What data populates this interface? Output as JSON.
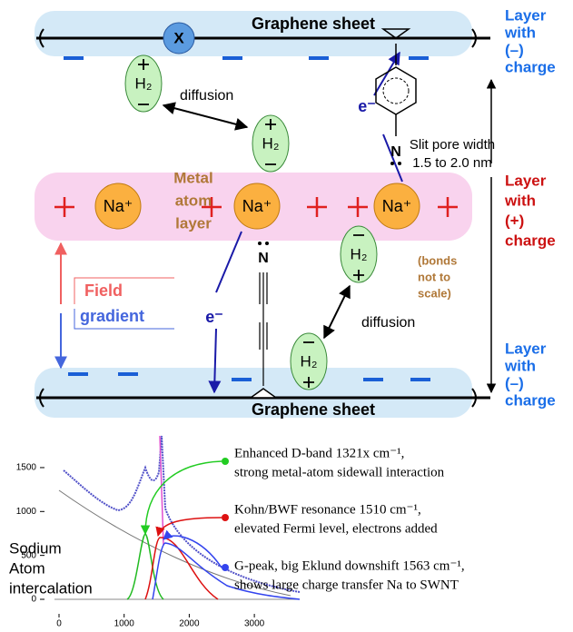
{
  "top_sheet": {
    "label": "Graphene sheet",
    "x_group": "X",
    "side_label": [
      "Layer",
      "with",
      "(–)",
      "charge"
    ]
  },
  "metal_layer": {
    "label": [
      "Metal",
      "atom",
      "layer"
    ],
    "ions": [
      "Na⁺",
      "Na⁺",
      "Na⁺"
    ],
    "side_label": [
      "Layer",
      "with",
      "(+)",
      "charge"
    ]
  },
  "bottom_sheet": {
    "label": "Graphene sheet",
    "side_label": [
      "Layer",
      "with",
      "(–)",
      "charge"
    ]
  },
  "molecules": [
    "H₂",
    "H₂",
    "H₂",
    "H₂"
  ],
  "diffusion_labels": [
    "diffusion",
    "diffusion"
  ],
  "electron_labels": [
    "e⁻",
    "e⁻"
  ],
  "nitrogen_labels": [
    "N",
    "N"
  ],
  "pore_width": [
    "Slit pore width",
    "1.5 to 2.0 nm"
  ],
  "bond_note": [
    "(bonds",
    "not to",
    "scale)"
  ],
  "field_gradient": [
    "Field",
    "gradient"
  ],
  "inset": {
    "yticks": [
      0,
      500,
      1000,
      1500
    ],
    "xticks": [
      0,
      1000,
      2000,
      3000
    ],
    "label": [
      "Sodium",
      "Atom",
      "intercalation"
    ],
    "annotations": [
      [
        "Enhanced D-band 1321x cm⁻¹,",
        "strong metal-atom sidewall interaction"
      ],
      [
        "Kohn/BWF resonance 1510 cm⁻¹,",
        "elevated Fermi level, electrons added"
      ],
      [
        "G-peak, big Eklund downshift 1563 cm⁻¹,",
        "shows large charge transfer Na to SWNT"
      ]
    ]
  }
}
